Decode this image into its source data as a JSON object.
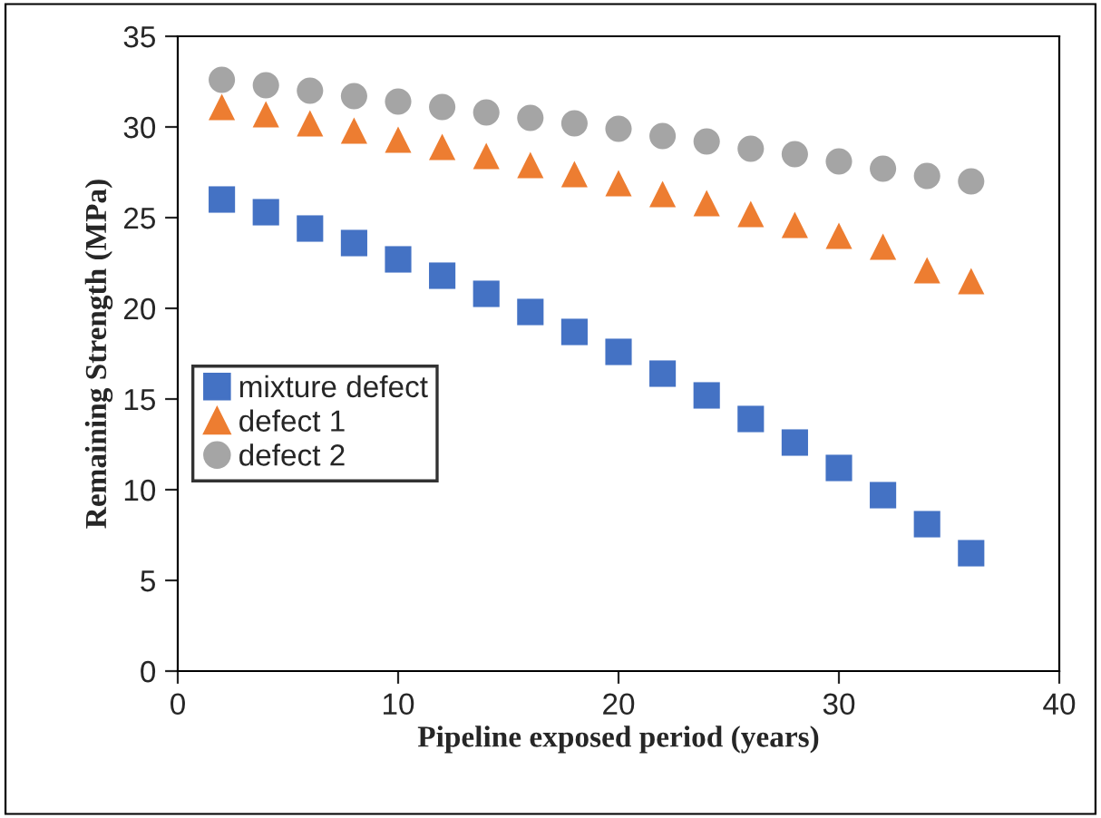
{
  "chart_data": {
    "type": "scatter",
    "xlabel": "Pipeline exposed period (years)",
    "ylabel": "Remaining Strength (MPa)",
    "x": [
      2,
      4,
      6,
      8,
      10,
      12,
      14,
      16,
      18,
      20,
      22,
      24,
      26,
      28,
      30,
      32,
      34,
      36
    ],
    "xlim": [
      0,
      40
    ],
    "xticks": [
      0,
      10,
      20,
      30,
      40
    ],
    "ylim": [
      0,
      35
    ],
    "yticks": [
      0,
      5,
      10,
      15,
      20,
      25,
      30,
      35
    ],
    "grid": false,
    "legend": "left",
    "series": [
      {
        "name": "mixture defect",
        "color": "#4472c4",
        "marker": "square",
        "values": [
          26.0,
          25.3,
          24.4,
          23.6,
          22.7,
          21.8,
          20.8,
          19.8,
          18.7,
          17.6,
          16.4,
          15.2,
          13.9,
          12.6,
          11.2,
          9.7,
          8.1,
          6.5
        ]
      },
      {
        "name": "defect 1",
        "color": "#ed7d31",
        "marker": "triangle",
        "values": [
          31.1,
          30.7,
          30.2,
          29.8,
          29.3,
          28.9,
          28.4,
          27.9,
          27.4,
          26.9,
          26.3,
          25.8,
          25.2,
          24.6,
          24.0,
          23.4,
          22.1,
          21.5
        ]
      },
      {
        "name": "defect 2",
        "color": "#a5a5a5",
        "marker": "circle",
        "values": [
          32.6,
          32.3,
          32.0,
          31.7,
          31.4,
          31.1,
          30.8,
          30.5,
          30.2,
          29.9,
          29.5,
          29.2,
          28.8,
          28.5,
          28.1,
          27.7,
          27.3,
          27.0
        ]
      }
    ]
  }
}
